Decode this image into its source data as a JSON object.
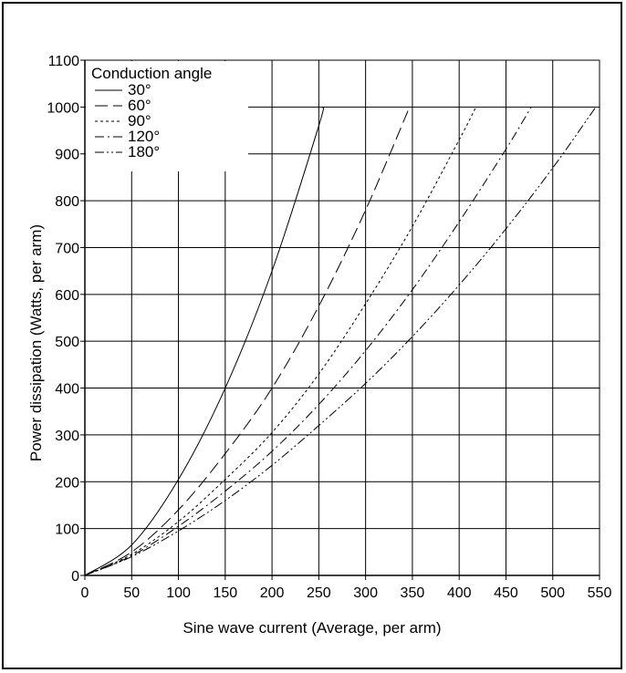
{
  "chart_data": {
    "type": "line",
    "title": "",
    "xlabel": "Sine wave current (Average, per arm)",
    "ylabel": "Power dissipation (Watts, per arm)",
    "xlim": [
      0,
      550
    ],
    "ylim": [
      0,
      1100
    ],
    "x_ticks": [
      "0",
      "50",
      "100",
      "150",
      "200",
      "250",
      "300",
      "350",
      "400",
      "450",
      "500",
      "550"
    ],
    "y_ticks": [
      "0",
      "100",
      "200",
      "300",
      "400",
      "500",
      "600",
      "700",
      "800",
      "900",
      "1000",
      "1100"
    ],
    "grid": true,
    "legend": {
      "title": "Conduction angle",
      "placement": "top-left"
    },
    "series": [
      {
        "name": "30°",
        "dash": "none",
        "x": [
          0,
          50,
          100,
          150,
          200,
          250,
          254
        ],
        "y": [
          0,
          65,
          205,
          400,
          650,
          960,
          1000
        ]
      },
      {
        "name": "60°",
        "dash": "14 6",
        "x": [
          0,
          50,
          100,
          150,
          200,
          250,
          300,
          347
        ],
        "y": [
          0,
          50,
          140,
          260,
          400,
          575,
          780,
          1000
        ]
      },
      {
        "name": "90°",
        "dash": "3 3",
        "x": [
          0,
          50,
          100,
          150,
          200,
          250,
          300,
          350,
          400,
          418
        ],
        "y": [
          0,
          45,
          115,
          205,
          305,
          430,
          580,
          745,
          930,
          1000
        ]
      },
      {
        "name": "120°",
        "dash": "10 4 2 4",
        "x": [
          0,
          50,
          100,
          150,
          200,
          250,
          300,
          350,
          400,
          450,
          477
        ],
        "y": [
          0,
          42,
          105,
          180,
          265,
          365,
          480,
          610,
          755,
          910,
          1000
        ]
      },
      {
        "name": "180°",
        "dash": "10 3 2 3 2 3",
        "x": [
          0,
          50,
          100,
          150,
          200,
          250,
          300,
          350,
          400,
          450,
          500,
          546
        ],
        "y": [
          0,
          40,
          95,
          160,
          235,
          320,
          410,
          510,
          620,
          740,
          870,
          1000
        ]
      }
    ],
    "colors": {
      "line": "#000000",
      "grid": "#000000",
      "background": "#ffffff"
    }
  }
}
